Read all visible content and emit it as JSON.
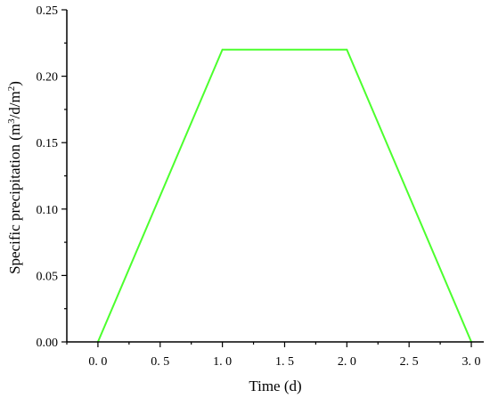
{
  "chart_data": {
    "type": "line",
    "xlabel": "Time (d)",
    "ylabel_parts": [
      "Specific precipitation (m",
      "3",
      "/d/m",
      "2",
      ")"
    ],
    "xlim": [
      -0.25,
      3.1
    ],
    "ylim": [
      0,
      0.25
    ],
    "xticks": [
      0.0,
      0.5,
      1.0,
      1.5,
      2.0,
      2.5,
      3.0
    ],
    "xtick_labels": [
      "0. 0",
      "0. 5",
      "1. 0",
      "1. 5",
      "2. 0",
      "2. 5",
      "3. 0"
    ],
    "yticks": [
      0.0,
      0.05,
      0.1,
      0.15,
      0.2,
      0.25
    ],
    "ytick_labels": [
      "0.00",
      "0.05",
      "0.10",
      "0.15",
      "0.20",
      "0.25"
    ],
    "grid": false,
    "series": [
      {
        "color": "#4cff2e",
        "x": [
          0.0,
          1.0,
          2.0,
          3.0
        ],
        "y": [
          0.0,
          0.22,
          0.22,
          0.0
        ]
      }
    ]
  }
}
